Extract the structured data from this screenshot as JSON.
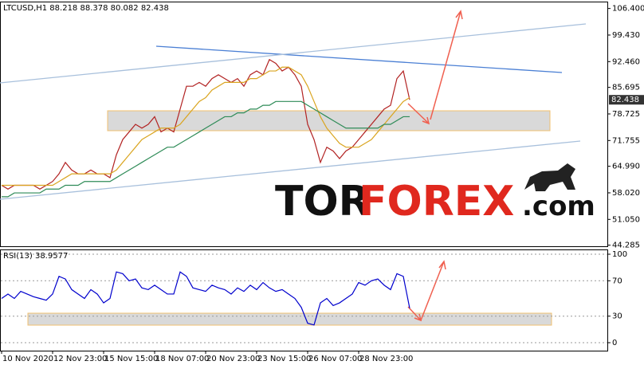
{
  "chart_data": [
    {
      "type": "line",
      "title": "LTCUSD,H1  88.218 88.378 80.082 82.438",
      "series": [
        {
          "color": "#b22222",
          "values": [
            60,
            59,
            60,
            60,
            60,
            60,
            59,
            60,
            61,
            63,
            66,
            64,
            63,
            63,
            64,
            63,
            63,
            62,
            68,
            72,
            74,
            76,
            75,
            76,
            78,
            74,
            75,
            74,
            80,
            86,
            86,
            87,
            86,
            88,
            89,
            88,
            87,
            88,
            86,
            89,
            90,
            89,
            93,
            92,
            90,
            91,
            89,
            86,
            76,
            72,
            66,
            70,
            69,
            67,
            69,
            70,
            72,
            74,
            76,
            78,
            80,
            81,
            88,
            90,
            82.438
          ]
        },
        {
          "color": "#daa520",
          "values": [
            60,
            60,
            60,
            60,
            60,
            60,
            60,
            60,
            60,
            61,
            62,
            63,
            63,
            63,
            63,
            63,
            63,
            63,
            64,
            66,
            68,
            70,
            72,
            73,
            74,
            75,
            75,
            75,
            76,
            78,
            80,
            82,
            83,
            85,
            86,
            87,
            87,
            87,
            87,
            88,
            88,
            89,
            90,
            90,
            91,
            91,
            90,
            89,
            86,
            82,
            78,
            75,
            73,
            71,
            70,
            70,
            70,
            71,
            72,
            74,
            76,
            78,
            80,
            82,
            83
          ]
        },
        {
          "color": "#2e8b57",
          "values": [
            57,
            57,
            58,
            58,
            58,
            58,
            58,
            59,
            59,
            59,
            60,
            60,
            60,
            61,
            61,
            61,
            61,
            61,
            62,
            63,
            64,
            65,
            66,
            67,
            68,
            69,
            70,
            70,
            71,
            72,
            73,
            74,
            75,
            76,
            77,
            78,
            78,
            79,
            79,
            80,
            80,
            81,
            81,
            82,
            82,
            82,
            82,
            82,
            81,
            80,
            79,
            78,
            77,
            76,
            75,
            75,
            75,
            75,
            75,
            75,
            76,
            76,
            77,
            78,
            78
          ]
        }
      ],
      "last_price": 82.438,
      "ylim": [
        44,
        108
      ],
      "yticks": [
        {
          "value": 106.4,
          "label": "106.400"
        },
        {
          "value": 99.43,
          "label": "99.430"
        },
        {
          "value": 92.46,
          "label": "92.460"
        },
        85.695,
        78.725,
        71.755,
        {
          "value": 64.99,
          "label": "64.990"
        },
        {
          "value": 58.02,
          "label": "58.020"
        },
        {
          "value": 51.05,
          "label": "51.050"
        },
        44.285
      ],
      "grid": false
    },
    {
      "type": "line",
      "title": "RSI(13) 38.9577",
      "categories": [
        "10 Nov 2020",
        null,
        null,
        null,
        null,
        null,
        null,
        null,
        "12 Nov 23:00",
        null,
        null,
        null,
        null,
        null,
        null,
        null,
        "15 Nov 15:00",
        null,
        null,
        null,
        null,
        null,
        null,
        null,
        "18 Nov 07:00",
        null,
        null,
        null,
        null,
        null,
        null,
        null,
        "20 Nov 23:00",
        null,
        null,
        null,
        null,
        null,
        null,
        null,
        "23 Nov 15:00",
        null,
        null,
        null,
        null,
        null,
        null,
        null,
        "26 Nov 07:00",
        null,
        null,
        null,
        null,
        null,
        null,
        null,
        "28 Nov 23:00",
        null,
        null,
        null,
        null,
        null,
        null,
        null,
        null
      ],
      "series": [
        {
          "color": "#0000cd",
          "values": [
            50,
            55,
            50,
            58,
            55,
            52,
            50,
            48,
            55,
            75,
            72,
            60,
            55,
            50,
            60,
            55,
            45,
            50,
            80,
            78,
            70,
            72,
            62,
            60,
            65,
            60,
            55,
            55,
            80,
            75,
            62,
            60,
            58,
            65,
            62,
            60,
            55,
            62,
            58,
            65,
            60,
            68,
            62,
            58,
            60,
            55,
            50,
            40,
            22,
            20,
            45,
            50,
            42,
            45,
            50,
            55,
            68,
            65,
            70,
            72,
            65,
            60,
            78,
            75,
            38.9577
          ]
        }
      ],
      "ylim": [
        -9,
        104.5
      ],
      "yticks": [
        0,
        30,
        70,
        100
      ],
      "grid": true
    }
  ],
  "watermark": {
    "part1": "TOR",
    "part2": "FOREX",
    "part3": ".com"
  }
}
